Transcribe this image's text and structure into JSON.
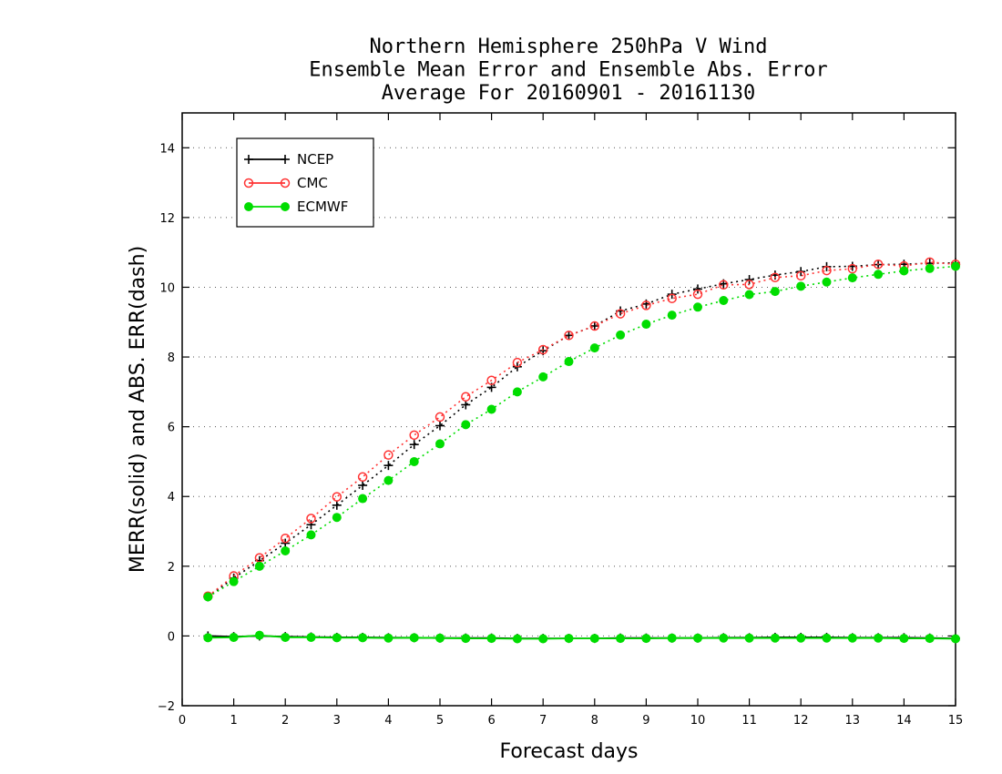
{
  "chart_data": {
    "type": "line",
    "title": [
      "Northern Hemisphere 250hPa V Wind",
      "Ensemble Mean Error and Ensemble Abs. Error",
      "Average For 20160901 - 20161130"
    ],
    "xlabel": "Forecast days",
    "ylabel": "MERR(solid) and ABS. ERR(dash)",
    "xlim": [
      0,
      15
    ],
    "ylim": [
      -2,
      15
    ],
    "xticks": [
      "0",
      "1",
      "2",
      "3",
      "4",
      "5",
      "6",
      "7",
      "8",
      "9",
      "10",
      "11",
      "12",
      "13",
      "14",
      "15"
    ],
    "yticks": [
      "−2",
      "0",
      "2",
      "4",
      "6",
      "8",
      "10",
      "12",
      "14"
    ],
    "grid": "horizontal dotted",
    "legend_position": "top-left",
    "x": [
      0.5,
      1,
      1.5,
      2,
      2.5,
      3,
      3.5,
      4,
      4.5,
      5,
      5.5,
      6,
      6.5,
      7,
      7.5,
      8,
      8.5,
      9,
      9.5,
      10,
      10.5,
      11,
      11.5,
      12,
      12.5,
      13,
      13.5,
      14,
      14.5,
      15
    ],
    "series": [
      {
        "name": "NCEP",
        "color": "#000000",
        "marker": "plus",
        "abs_error": [
          1.12,
          1.66,
          2.16,
          2.66,
          3.19,
          3.75,
          4.32,
          4.89,
          5.49,
          6.03,
          6.63,
          7.13,
          7.72,
          8.18,
          8.62,
          8.89,
          9.32,
          9.52,
          9.8,
          9.95,
          10.1,
          10.22,
          10.35,
          10.45,
          10.59,
          10.6,
          10.65,
          10.66,
          10.69,
          10.7
        ],
        "mean_error": [
          0.0,
          -0.02,
          0.0,
          -0.02,
          -0.03,
          -0.04,
          -0.04,
          -0.05,
          -0.05,
          -0.06,
          -0.06,
          -0.06,
          -0.07,
          -0.07,
          -0.07,
          -0.07,
          -0.06,
          -0.06,
          -0.06,
          -0.06,
          -0.05,
          -0.05,
          -0.04,
          -0.04,
          -0.04,
          -0.05,
          -0.05,
          -0.05,
          -0.06,
          -0.07
        ]
      },
      {
        "name": "CMC",
        "color": "#ff3333",
        "marker": "open-circle",
        "abs_error": [
          1.14,
          1.72,
          2.24,
          2.8,
          3.37,
          3.99,
          4.56,
          5.19,
          5.76,
          6.28,
          6.86,
          7.33,
          7.84,
          8.21,
          8.62,
          8.89,
          9.24,
          9.48,
          9.68,
          9.8,
          10.07,
          10.08,
          10.28,
          10.33,
          10.48,
          10.53,
          10.66,
          10.61,
          10.72,
          10.66
        ]
      },
      {
        "name": "ECMWF",
        "color": "#00dd00",
        "marker": "filled-circle",
        "abs_error": [
          1.12,
          1.56,
          2.0,
          2.44,
          2.9,
          3.4,
          3.94,
          4.46,
          5.0,
          5.51,
          6.06,
          6.5,
          7.0,
          7.43,
          7.87,
          8.26,
          8.63,
          8.94,
          9.2,
          9.43,
          9.62,
          9.79,
          9.88,
          10.03,
          10.15,
          10.27,
          10.37,
          10.47,
          10.54,
          10.6
        ],
        "mean_error": [
          -0.05,
          -0.04,
          0.02,
          -0.04,
          -0.04,
          -0.05,
          -0.05,
          -0.06,
          -0.05,
          -0.06,
          -0.07,
          -0.07,
          -0.08,
          -0.08,
          -0.07,
          -0.07,
          -0.07,
          -0.07,
          -0.06,
          -0.06,
          -0.06,
          -0.06,
          -0.06,
          -0.06,
          -0.06,
          -0.06,
          -0.06,
          -0.07,
          -0.07,
          -0.08
        ]
      }
    ]
  }
}
